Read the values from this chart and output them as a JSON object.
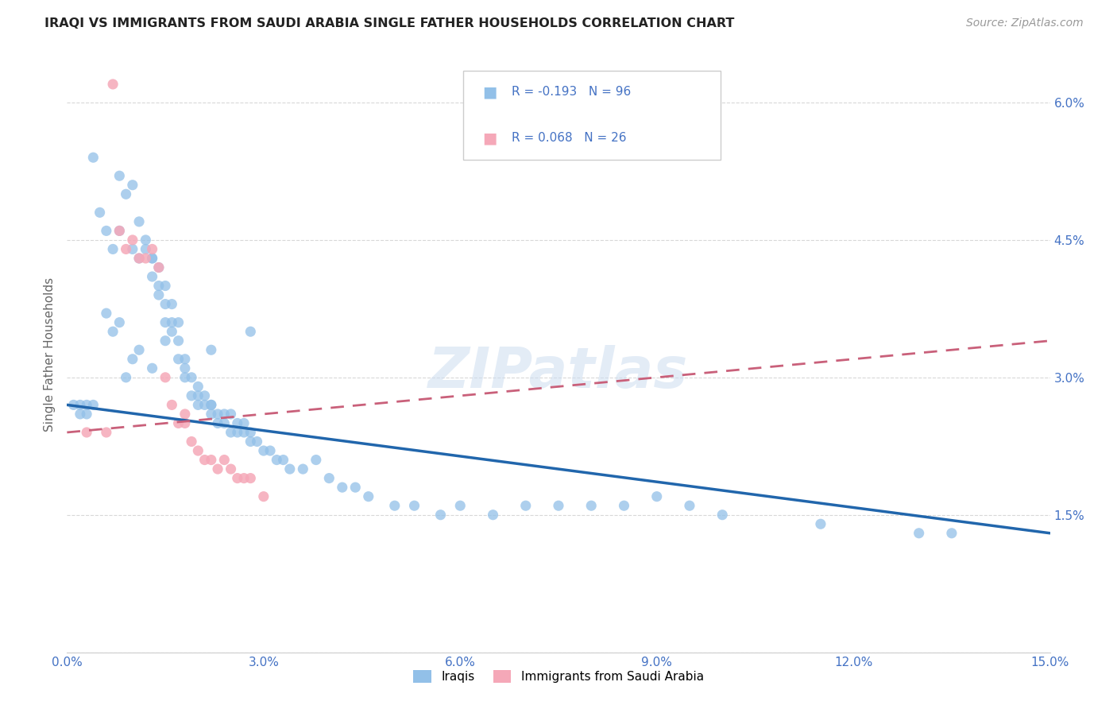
{
  "title": "IRAQI VS IMMIGRANTS FROM SAUDI ARABIA SINGLE FATHER HOUSEHOLDS CORRELATION CHART",
  "source": "Source: ZipAtlas.com",
  "ylabel": "Single Father Households",
  "watermark": "ZIPatlas",
  "xlim": [
    0.0,
    0.15
  ],
  "ylim": [
    0.0,
    0.065
  ],
  "xticks": [
    0.0,
    0.03,
    0.06,
    0.09,
    0.12,
    0.15
  ],
  "yticks": [
    0.0,
    0.015,
    0.03,
    0.045,
    0.06
  ],
  "ytick_labels": [
    "",
    "1.5%",
    "3.0%",
    "4.5%",
    "6.0%"
  ],
  "xtick_labels": [
    "0.0%",
    "3.0%",
    "6.0%",
    "9.0%",
    "12.0%",
    "15.0%"
  ],
  "legend_label1": "Iraqis",
  "legend_label2": "Immigrants from Saudi Arabia",
  "r1": "-0.193",
  "n1": "96",
  "r2": "0.068",
  "n2": "26",
  "color1": "#92c0e8",
  "color2": "#f5a8b8",
  "line_color1": "#2166ac",
  "line_color2": "#c9607a",
  "background_color": "#ffffff",
  "grid_color": "#d8d8d8",
  "iraqis_x": [
    0.004,
    0.005,
    0.006,
    0.007,
    0.008,
    0.008,
    0.009,
    0.01,
    0.01,
    0.011,
    0.011,
    0.012,
    0.012,
    0.013,
    0.013,
    0.013,
    0.014,
    0.014,
    0.014,
    0.015,
    0.015,
    0.015,
    0.016,
    0.016,
    0.016,
    0.017,
    0.017,
    0.017,
    0.018,
    0.018,
    0.018,
    0.019,
    0.019,
    0.02,
    0.02,
    0.02,
    0.021,
    0.021,
    0.022,
    0.022,
    0.022,
    0.023,
    0.023,
    0.024,
    0.024,
    0.025,
    0.025,
    0.026,
    0.026,
    0.027,
    0.027,
    0.028,
    0.028,
    0.029,
    0.03,
    0.031,
    0.032,
    0.033,
    0.034,
    0.036,
    0.038,
    0.04,
    0.042,
    0.044,
    0.046,
    0.05,
    0.053,
    0.057,
    0.06,
    0.065,
    0.07,
    0.075,
    0.08,
    0.085,
    0.09,
    0.095,
    0.1,
    0.115,
    0.13,
    0.135,
    0.001,
    0.002,
    0.002,
    0.003,
    0.003,
    0.004,
    0.006,
    0.007,
    0.008,
    0.009,
    0.01,
    0.011,
    0.013,
    0.015,
    0.022,
    0.028
  ],
  "iraqis_y": [
    0.054,
    0.048,
    0.046,
    0.044,
    0.046,
    0.052,
    0.05,
    0.051,
    0.044,
    0.043,
    0.047,
    0.045,
    0.044,
    0.043,
    0.043,
    0.041,
    0.042,
    0.04,
    0.039,
    0.04,
    0.038,
    0.036,
    0.038,
    0.036,
    0.035,
    0.036,
    0.034,
    0.032,
    0.032,
    0.031,
    0.03,
    0.03,
    0.028,
    0.029,
    0.028,
    0.027,
    0.028,
    0.027,
    0.027,
    0.026,
    0.027,
    0.025,
    0.026,
    0.026,
    0.025,
    0.026,
    0.024,
    0.025,
    0.024,
    0.025,
    0.024,
    0.024,
    0.023,
    0.023,
    0.022,
    0.022,
    0.021,
    0.021,
    0.02,
    0.02,
    0.021,
    0.019,
    0.018,
    0.018,
    0.017,
    0.016,
    0.016,
    0.015,
    0.016,
    0.015,
    0.016,
    0.016,
    0.016,
    0.016,
    0.017,
    0.016,
    0.015,
    0.014,
    0.013,
    0.013,
    0.027,
    0.027,
    0.026,
    0.027,
    0.026,
    0.027,
    0.037,
    0.035,
    0.036,
    0.03,
    0.032,
    0.033,
    0.031,
    0.034,
    0.033,
    0.035
  ],
  "saudi_x": [
    0.003,
    0.006,
    0.007,
    0.008,
    0.009,
    0.01,
    0.011,
    0.012,
    0.013,
    0.014,
    0.015,
    0.016,
    0.017,
    0.018,
    0.018,
    0.019,
    0.02,
    0.021,
    0.022,
    0.023,
    0.024,
    0.025,
    0.026,
    0.027,
    0.028,
    0.03
  ],
  "saudi_y": [
    0.024,
    0.024,
    0.062,
    0.046,
    0.044,
    0.045,
    0.043,
    0.043,
    0.044,
    0.042,
    0.03,
    0.027,
    0.025,
    0.025,
    0.026,
    0.023,
    0.022,
    0.021,
    0.021,
    0.02,
    0.021,
    0.02,
    0.019,
    0.019,
    0.019,
    0.017
  ],
  "iraq_line_x": [
    0.0,
    0.15
  ],
  "iraq_line_y": [
    0.027,
    0.013
  ],
  "saudi_line_x": [
    0.0,
    0.15
  ],
  "saudi_line_y": [
    0.024,
    0.034
  ]
}
